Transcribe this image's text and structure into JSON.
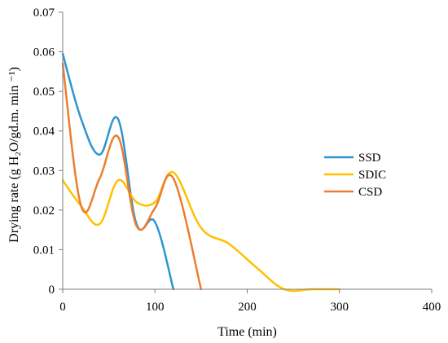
{
  "chart_data": {
    "type": "line",
    "xlabel": "Time (min)",
    "ylabel": "Drying rate (g H₂O/gd.m. min ⁻¹)",
    "xlim": [
      0,
      400
    ],
    "ylim": [
      0,
      0.07
    ],
    "x_ticks": [
      0,
      100,
      200,
      300,
      400
    ],
    "x_tick_labels": [
      "0",
      "100",
      "200",
      "300",
      "400"
    ],
    "y_ticks": [
      0,
      0.01,
      0.02,
      0.03,
      0.04,
      0.05,
      0.06,
      0.07
    ],
    "y_tick_labels": [
      "0",
      "0.01",
      "0.02",
      "0.03",
      "0.04",
      "0.05",
      "0.06",
      "0.07"
    ],
    "grid": false,
    "legend_position": "right",
    "series": [
      {
        "name": "SSD",
        "color": "#2e95d0",
        "x": [
          0,
          20,
          40,
          60,
          80,
          100,
          120
        ],
        "y": [
          0.0595,
          0.043,
          0.034,
          0.043,
          0.0165,
          0.017,
          0.0
        ]
      },
      {
        "name": "SDIC",
        "color": "#ffc000",
        "x": [
          0,
          20,
          40,
          60,
          80,
          100,
          120,
          150,
          180,
          210,
          240,
          270,
          300
        ],
        "y": [
          0.0275,
          0.021,
          0.0165,
          0.0275,
          0.022,
          0.022,
          0.0295,
          0.0155,
          0.0115,
          0.0055,
          0.0,
          0.0,
          0.0
        ]
      },
      {
        "name": "CSD",
        "color": "#ed7d31",
        "x": [
          0,
          20,
          40,
          60,
          80,
          100,
          120,
          150
        ],
        "y": [
          0.057,
          0.021,
          0.028,
          0.0385,
          0.016,
          0.0205,
          0.028,
          0.0
        ]
      }
    ]
  }
}
